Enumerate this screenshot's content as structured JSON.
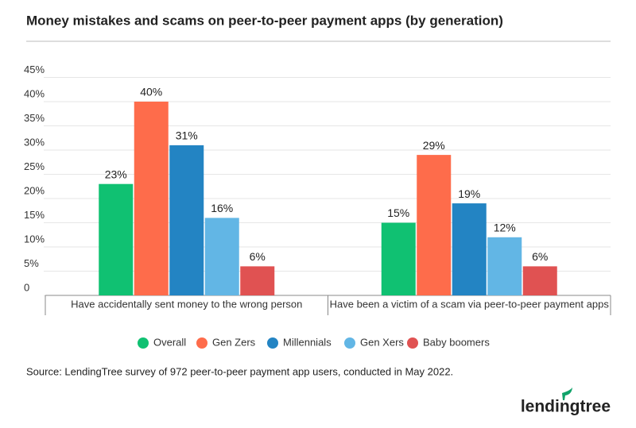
{
  "chart_data": {
    "type": "bar",
    "title": "Money mistakes and scams on peer-to-peer payment apps (by generation)",
    "categories": [
      "Have accidentally sent money to the wrong person",
      "Have been a victim of a scam via peer-to-peer payment apps"
    ],
    "series": [
      {
        "name": "Overall",
        "color": "#10c172",
        "values": [
          23,
          15
        ],
        "value_labels": [
          "23%",
          "15%"
        ]
      },
      {
        "name": "Gen Zers",
        "color": "#fe6c4b",
        "values": [
          40,
          29
        ],
        "value_labels": [
          "40%",
          "29%"
        ]
      },
      {
        "name": "Millennials",
        "color": "#2384c3",
        "values": [
          31,
          19
        ],
        "value_labels": [
          "31%",
          "19%"
        ]
      },
      {
        "name": "Gen Xers",
        "color": "#62b6e5",
        "values": [
          16,
          12
        ],
        "value_labels": [
          "16%",
          "12%"
        ]
      },
      {
        "name": "Baby boomers",
        "color": "#e05252",
        "values": [
          6,
          6
        ],
        "value_labels": [
          "6%",
          "6%"
        ]
      }
    ],
    "ylim": [
      0,
      45
    ],
    "yticks": [
      0,
      {
        "value": 5,
        "label": "5%"
      },
      {
        "value": 10,
        "label": "10%"
      },
      {
        "value": 15,
        "label": "15%"
      },
      {
        "value": 20,
        "label": "20%"
      },
      {
        "value": 25,
        "label": "25%"
      },
      {
        "value": 30,
        "label": "30%"
      },
      {
        "value": 35,
        "label": "35%"
      },
      {
        "value": 40,
        "label": "40%"
      },
      {
        "value": 45,
        "label": "45%"
      }
    ],
    "grid": true,
    "legend": "bottom",
    "source": "Source: LendingTree survey of 972 peer-to-peer payment app users, conducted in May 2022.",
    "brand": "lendingtree"
  }
}
